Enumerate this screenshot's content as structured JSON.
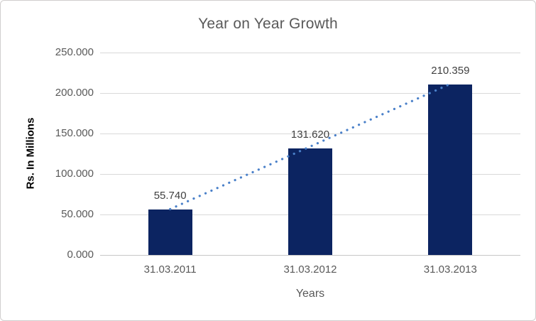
{
  "chart_data": {
    "type": "bar",
    "title": "Year on Year Growth",
    "xlabel": "Years",
    "ylabel": "Rs. In Millions",
    "categories": [
      "31.03.2011",
      "31.03.2012",
      "31.03.2013"
    ],
    "series": [
      {
        "name": "Rs. In Millions",
        "type": "bar",
        "values": [
          55.74,
          131.62,
          210.359
        ],
        "data_labels": [
          "55.740",
          "131.620",
          "210.359"
        ],
        "color": "#0c2461"
      },
      {
        "name": "Linear trendline",
        "type": "line",
        "line_style": "dotted",
        "values": [
          55.74,
          131.62,
          210.359
        ],
        "color": "#4a80c9"
      }
    ],
    "ylim": [
      0,
      250
    ],
    "ytick_values": [
      0,
      50,
      100,
      150,
      200,
      250
    ],
    "ytick_labels": [
      "0.000",
      "50.000",
      "100.000",
      "150.000",
      "200.000",
      "250.000"
    ],
    "grid": true,
    "legend": "none"
  },
  "colors": {
    "bar": "#0c2461",
    "trendline": "#4a80c9",
    "gridline": "#d9d9d9",
    "axis_line": "#c6c6c6",
    "title_text": "#595959",
    "tick_text": "#595959",
    "data_label_text": "#404040",
    "axis_title_text": "#000000",
    "frame_border": "#d0cece",
    "background": "#ffffff"
  }
}
